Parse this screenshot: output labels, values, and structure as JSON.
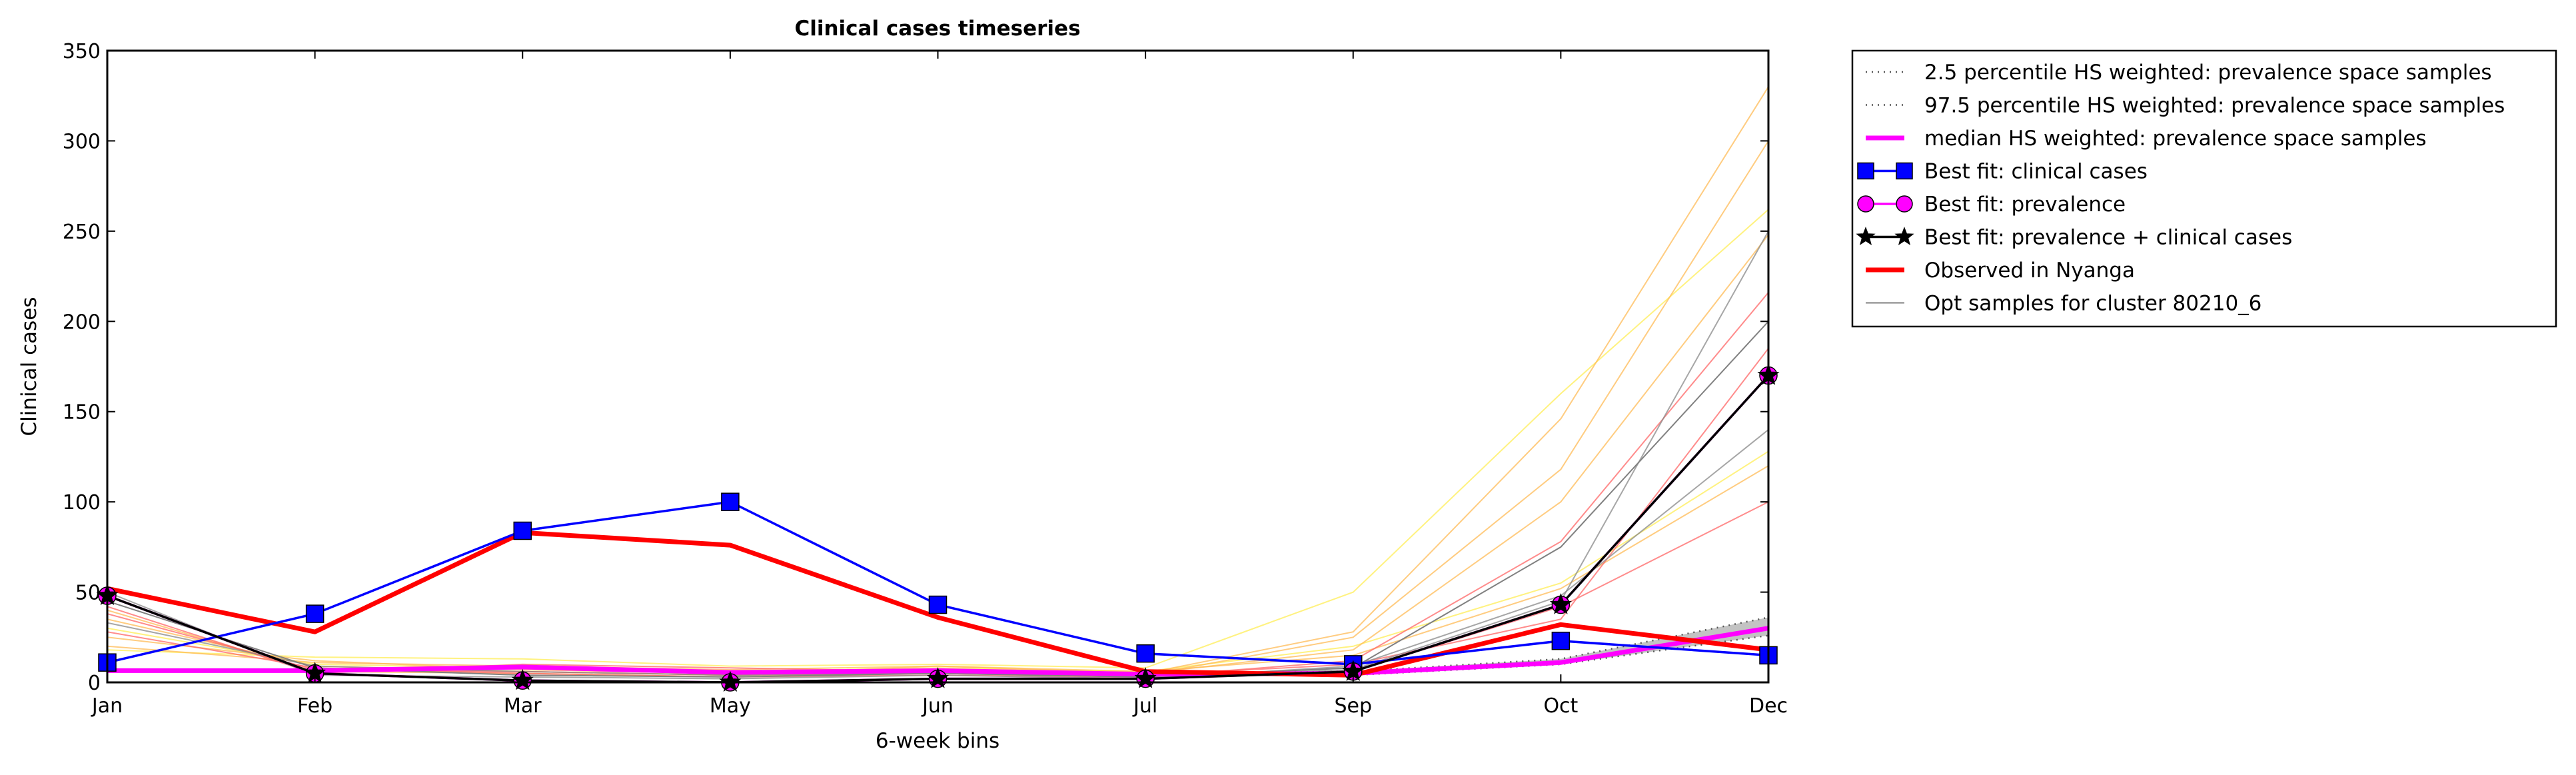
{
  "chart_data": {
    "type": "line",
    "title": "Clinical cases timeseries",
    "xlabel": "6-week bins",
    "ylabel": "Clinical cases",
    "categories": [
      "Jan",
      "Feb",
      "Mar",
      "May",
      "Jun",
      "Jul",
      "Sep",
      "Oct",
      "Dec"
    ],
    "ylim": [
      0,
      350
    ],
    "yticks": [
      0,
      50,
      100,
      150,
      200,
      250,
      300,
      350
    ],
    "grid": false,
    "legend_placement": "outside-top-right",
    "band": {
      "lower": [
        6,
        6,
        8,
        5,
        6,
        4,
        4,
        10,
        26
      ],
      "upper": [
        7,
        7,
        9,
        6,
        7,
        5,
        6,
        13,
        36
      ],
      "color": "#aaaaaa"
    },
    "series": [
      {
        "name": "2.5 percentile HS weighted: prevalence space samples",
        "style": "dotted",
        "color": "#555555",
        "values": [
          6,
          6,
          8,
          5,
          6,
          4,
          4,
          10,
          26
        ]
      },
      {
        "name": "97.5 percentile HS weighted: prevalence space samples",
        "style": "dotted",
        "color": "#555555",
        "values": [
          7,
          7,
          9,
          6,
          7,
          5,
          6,
          13,
          36
        ]
      },
      {
        "name": "median HS weighted: prevalence space samples",
        "style": "thick",
        "color": "#ff00ff",
        "values": [
          6.5,
          6.5,
          8.5,
          5.5,
          6.5,
          4.5,
          5,
          11,
          30
        ]
      },
      {
        "name": "Best fit: clinical cases",
        "style": "line-square",
        "color": "#0000ff",
        "values": [
          11,
          38,
          84,
          100,
          43,
          16,
          10,
          23,
          15
        ]
      },
      {
        "name": "Best fit: prevalence",
        "style": "line-circle",
        "color": "#ff00ff",
        "values": [
          48,
          5,
          1,
          0,
          2,
          2,
          6,
          43,
          170
        ]
      },
      {
        "name": "Best fit: prevalence + clinical cases",
        "style": "line-star",
        "color": "#000000",
        "values": [
          48,
          5,
          1,
          0,
          2,
          2,
          6,
          43,
          170
        ]
      },
      {
        "name": "Observed in Nyanga",
        "style": "thick",
        "color": "#ff0000",
        "values": [
          52,
          28,
          83,
          76,
          36,
          6,
          4,
          32,
          18
        ]
      },
      {
        "name": "Opt samples for cluster 80210_6",
        "style": "thin",
        "color": "#808080",
        "values": [
          45,
          8,
          4,
          3,
          5,
          3,
          8,
          75,
          200
        ]
      }
    ],
    "samples": [
      {
        "color": "#ffee55",
        "values": [
          18,
          14,
          13,
          9,
          10,
          8,
          50,
          160,
          262
        ]
      },
      {
        "color": "#ffee55",
        "values": [
          30,
          10,
          8,
          6,
          8,
          6,
          20,
          55,
          128
        ]
      },
      {
        "color": "#ffbb55",
        "values": [
          25,
          12,
          7,
          5,
          7,
          5,
          28,
          146,
          330
        ]
      },
      {
        "color": "#ffbb55",
        "values": [
          40,
          6,
          5,
          3,
          6,
          4,
          25,
          118,
          300
        ]
      },
      {
        "color": "#ffbb55",
        "values": [
          35,
          9,
          6,
          4,
          9,
          5,
          18,
          100,
          248
        ]
      },
      {
        "color": "#ffbb55",
        "values": [
          20,
          11,
          9,
          7,
          9,
          6,
          15,
          52,
          120
        ]
      },
      {
        "color": "#ff6666",
        "values": [
          38,
          7,
          6,
          4,
          5,
          3,
          12,
          78,
          216
        ]
      },
      {
        "color": "#ff6666",
        "values": [
          28,
          8,
          5,
          3,
          4,
          3,
          6,
          42,
          100
        ]
      },
      {
        "color": "#ff6666",
        "values": [
          42,
          5,
          10,
          8,
          6,
          4,
          10,
          35,
          185
        ]
      },
      {
        "color": "#888888",
        "values": [
          50,
          4,
          3,
          2,
          4,
          2,
          9,
          48,
          140
        ]
      },
      {
        "color": "#888888",
        "values": [
          33,
          9,
          6,
          4,
          5,
          3,
          7,
          45,
          250
        ]
      }
    ]
  }
}
